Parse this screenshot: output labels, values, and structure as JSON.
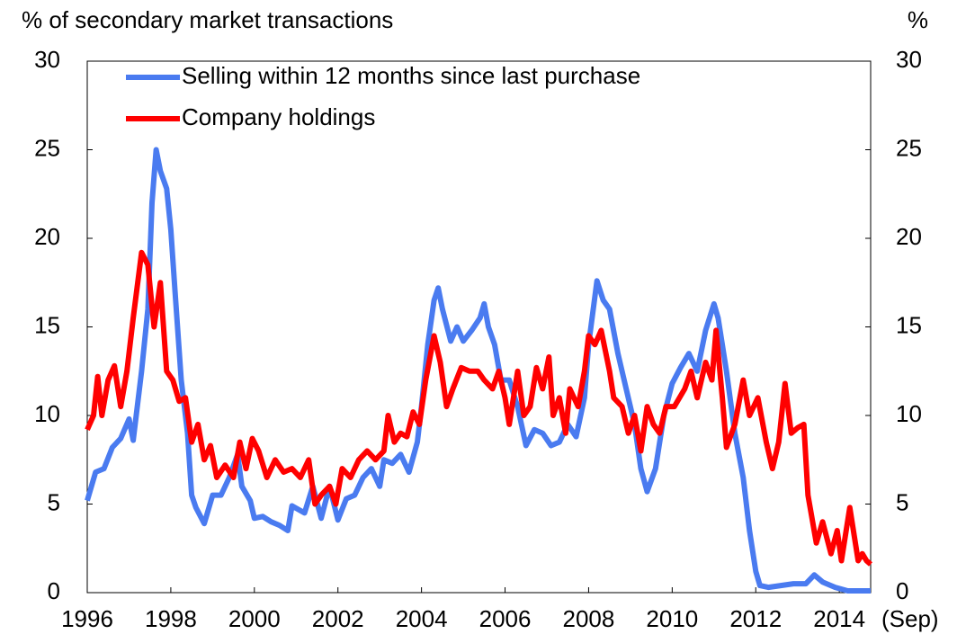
{
  "chart_data": {
    "type": "line",
    "y_label": "% of secondary market transactions",
    "y2_label": "%",
    "x_note": "(Sep)",
    "xlim": [
      1996,
      2014.75
    ],
    "xticks": [
      1996,
      1998,
      2000,
      2002,
      2004,
      2006,
      2008,
      2010,
      2012,
      2014
    ],
    "ylim": [
      0,
      30
    ],
    "yticks": [
      0,
      5,
      10,
      15,
      20,
      25,
      30
    ],
    "y2lim": [
      0,
      30
    ],
    "y2ticks": [
      0,
      5,
      10,
      15,
      20,
      25,
      30
    ],
    "legend": "top-left",
    "series": [
      {
        "name": "Selling within 12 months since last purchase",
        "color": "#4a7bf0",
        "x": [
          1996.0,
          1996.2,
          1996.4,
          1996.6,
          1996.8,
          1997.0,
          1997.1,
          1997.3,
          1997.45,
          1997.55,
          1997.65,
          1997.75,
          1997.9,
          1998.0,
          1998.1,
          1998.25,
          1998.4,
          1998.5,
          1998.6,
          1998.8,
          1999.0,
          1999.2,
          1999.4,
          1999.6,
          1999.7,
          1999.9,
          2000.0,
          2000.2,
          2000.4,
          2000.6,
          2000.8,
          2000.9,
          2001.2,
          2001.4,
          2001.6,
          2001.8,
          2002.0,
          2002.2,
          2002.4,
          2002.6,
          2002.8,
          2003.0,
          2003.1,
          2003.3,
          2003.5,
          2003.7,
          2003.9,
          2004.0,
          2004.15,
          2004.3,
          2004.4,
          2004.5,
          2004.7,
          2004.85,
          2005.0,
          2005.2,
          2005.4,
          2005.5,
          2005.6,
          2005.75,
          2005.9,
          2006.1,
          2006.3,
          2006.5,
          2006.7,
          2006.9,
          2007.1,
          2007.3,
          2007.5,
          2007.7,
          2007.9,
          2008.0,
          2008.2,
          2008.35,
          2008.5,
          2008.7,
          2008.9,
          2009.1,
          2009.25,
          2009.4,
          2009.6,
          2009.8,
          2010.0,
          2010.2,
          2010.4,
          2010.6,
          2010.8,
          2011.0,
          2011.1,
          2011.3,
          2011.5,
          2011.7,
          2011.85,
          2012.0,
          2012.1,
          2012.3,
          2012.6,
          2012.9,
          2013.2,
          2013.4,
          2013.6,
          2013.9,
          2014.2,
          2014.5,
          2014.75
        ],
        "values": [
          5.2,
          6.8,
          7.0,
          8.2,
          8.7,
          9.8,
          8.6,
          12.5,
          16,
          22,
          25.0,
          23.8,
          22.8,
          20.5,
          17,
          12,
          9,
          5.5,
          4.8,
          3.9,
          5.5,
          5.5,
          6.5,
          7.8,
          6.0,
          5.2,
          4.2,
          4.3,
          4.0,
          3.8,
          3.5,
          4.9,
          4.5,
          6.0,
          4.2,
          6.0,
          4.1,
          5.3,
          5.5,
          6.5,
          7.0,
          6.0,
          7.5,
          7.3,
          7.8,
          6.8,
          8.5,
          10.5,
          14.0,
          16.5,
          17.2,
          16.0,
          14.2,
          15.0,
          14.2,
          14.8,
          15.5,
          16.3,
          15.0,
          14.0,
          12.0,
          12.0,
          10.5,
          8.3,
          9.2,
          9.0,
          8.3,
          8.5,
          9.5,
          8.8,
          11.0,
          14.0,
          17.6,
          16.5,
          16.0,
          13.5,
          11.5,
          9.5,
          7.0,
          5.7,
          7.0,
          10.0,
          11.8,
          12.7,
          13.5,
          12.5,
          14.8,
          16.3,
          15.5,
          12.5,
          9.0,
          6.5,
          3.5,
          1.2,
          0.4,
          0.3,
          0.4,
          0.5,
          0.5,
          1.0,
          0.6,
          0.3,
          0.1,
          0.1,
          0.1
        ]
      },
      {
        "name": "Company holdings",
        "color": "#ff0000",
        "x": [
          1996.0,
          1996.15,
          1996.25,
          1996.35,
          1996.5,
          1996.65,
          1996.8,
          1996.95,
          1997.1,
          1997.3,
          1997.45,
          1997.6,
          1997.75,
          1997.9,
          1998.05,
          1998.2,
          1998.35,
          1998.5,
          1998.65,
          1998.8,
          1998.95,
          1999.1,
          1999.3,
          1999.5,
          1999.65,
          1999.8,
          1999.95,
          2000.1,
          2000.3,
          2000.5,
          2000.7,
          2000.9,
          2001.1,
          2001.3,
          2001.45,
          2001.6,
          2001.8,
          2001.95,
          2002.1,
          2002.3,
          2002.5,
          2002.7,
          2002.9,
          2003.1,
          2003.2,
          2003.35,
          2003.5,
          2003.65,
          2003.8,
          2003.95,
          2004.1,
          2004.3,
          2004.45,
          2004.6,
          2004.75,
          2004.95,
          2005.15,
          2005.35,
          2005.5,
          2005.7,
          2005.85,
          2006.0,
          2006.1,
          2006.3,
          2006.45,
          2006.6,
          2006.75,
          2006.9,
          2007.05,
          2007.15,
          2007.3,
          2007.45,
          2007.55,
          2007.75,
          2007.9,
          2008.0,
          2008.15,
          2008.3,
          2008.5,
          2008.6,
          2008.8,
          2008.95,
          2009.1,
          2009.25,
          2009.4,
          2009.55,
          2009.7,
          2009.85,
          2010.05,
          2010.3,
          2010.45,
          2010.6,
          2010.8,
          2010.95,
          2011.05,
          2011.2,
          2011.3,
          2011.5,
          2011.7,
          2011.85,
          2012.05,
          2012.25,
          2012.4,
          2012.55,
          2012.7,
          2012.85,
          2013.0,
          2013.15,
          2013.25,
          2013.45,
          2013.6,
          2013.8,
          2013.95,
          2014.05,
          2014.25,
          2014.45,
          2014.55,
          2014.65,
          2014.75
        ],
        "values": [
          9.2,
          10.0,
          12.2,
          10.0,
          12.0,
          12.8,
          10.5,
          12.5,
          15.5,
          19.2,
          18.5,
          15.0,
          17.5,
          12.5,
          12.0,
          10.8,
          11.0,
          8.5,
          9.5,
          7.5,
          8.3,
          6.5,
          7.2,
          6.5,
          8.5,
          7.0,
          8.7,
          8.0,
          6.5,
          7.5,
          6.8,
          7.0,
          6.5,
          7.5,
          5.0,
          5.5,
          6.0,
          5.0,
          7.0,
          6.5,
          7.5,
          8.0,
          7.5,
          8.0,
          10.0,
          8.5,
          9.0,
          8.8,
          10.2,
          9.5,
          12.0,
          14.5,
          13.0,
          10.5,
          11.5,
          12.7,
          12.5,
          12.5,
          12.0,
          11.5,
          12.5,
          11.0,
          9.5,
          12.5,
          10.0,
          10.5,
          12.7,
          11.5,
          13.3,
          10.0,
          11.0,
          9.0,
          11.5,
          10.5,
          12.5,
          14.5,
          14.0,
          14.8,
          12.5,
          11.0,
          10.5,
          9.0,
          10.0,
          8.0,
          10.5,
          9.5,
          9.0,
          10.5,
          10.5,
          11.5,
          12.5,
          11.0,
          13.0,
          12.0,
          14.8,
          11.0,
          8.2,
          9.5,
          12.0,
          10.0,
          11.0,
          8.5,
          7.0,
          8.5,
          11.8,
          9.0,
          9.3,
          9.5,
          5.5,
          2.8,
          4.0,
          2.2,
          3.5,
          1.8,
          4.8,
          1.8,
          2.2,
          1.8,
          1.6
        ]
      }
    ]
  }
}
